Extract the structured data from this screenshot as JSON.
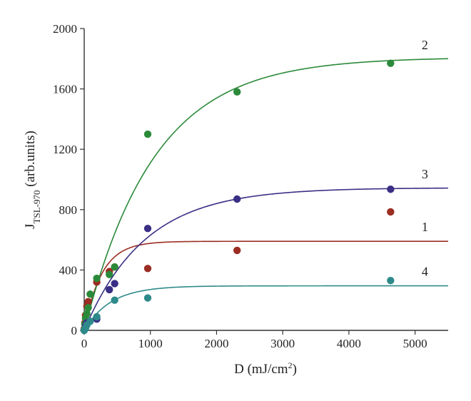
{
  "chart_data": {
    "type": "scatter",
    "xlabel": "D (mJ/cm2)",
    "xlabel_parts": {
      "main": "D (mJ/cm",
      "sup": "2",
      "close": ")"
    },
    "ylabel": "JTSL-970 (arb.units)",
    "ylabel_parts": {
      "main": "J",
      "sub": "TSL-970",
      "rest": " (arb.units)"
    },
    "xlim": [
      0,
      5500
    ],
    "ylim": [
      0,
      2000
    ],
    "x_ticks": [
      0,
      1000,
      2000,
      3000,
      4000,
      5000
    ],
    "y_ticks": [
      0,
      400,
      800,
      1200,
      1600,
      2000
    ],
    "grid": false,
    "legend": "none",
    "series": [
      {
        "label": "1",
        "color": "#9b2d22",
        "curve": {
          "amplitude": 590,
          "rate": 0.0038
        },
        "label_anchor_x": 5100,
        "points": [
          [
            0,
            10
          ],
          [
            10,
            50
          ],
          [
            20,
            100
          ],
          [
            40,
            160
          ],
          [
            60,
            190
          ],
          [
            190,
            320
          ],
          [
            380,
            390
          ],
          [
            460,
            420
          ],
          [
            960,
            410
          ],
          [
            2310,
            530
          ],
          [
            4630,
            785
          ]
        ]
      },
      {
        "label": "2",
        "color": "#2b8a3a",
        "curve": {
          "amplitude": 1810,
          "rate": 0.00095
        },
        "label_anchor_x": 5100,
        "points": [
          [
            0,
            5
          ],
          [
            10,
            40
          ],
          [
            20,
            80
          ],
          [
            40,
            110
          ],
          [
            60,
            150
          ],
          [
            90,
            240
          ],
          [
            190,
            345
          ],
          [
            380,
            370
          ],
          [
            460,
            420
          ],
          [
            960,
            1300
          ],
          [
            2310,
            1580
          ],
          [
            4630,
            1770
          ]
        ]
      },
      {
        "label": "3",
        "color": "#3a2f85",
        "curve": {
          "amplitude": 945,
          "rate": 0.0011
        },
        "label_anchor_x": 5100,
        "points": [
          [
            0,
            0
          ],
          [
            20,
            30
          ],
          [
            40,
            50
          ],
          [
            190,
            75
          ],
          [
            380,
            270
          ],
          [
            460,
            310
          ],
          [
            960,
            675
          ],
          [
            2310,
            870
          ],
          [
            4630,
            935
          ]
        ]
      },
      {
        "label": "4",
        "color": "#2e8a8a",
        "curve": {
          "amplitude": 295,
          "rate": 0.0025
        },
        "label_anchor_x": 5100,
        "points": [
          [
            0,
            0
          ],
          [
            20,
            15
          ],
          [
            40,
            35
          ],
          [
            90,
            60
          ],
          [
            190,
            90
          ],
          [
            460,
            200
          ],
          [
            960,
            215
          ],
          [
            4630,
            330
          ]
        ]
      }
    ]
  }
}
